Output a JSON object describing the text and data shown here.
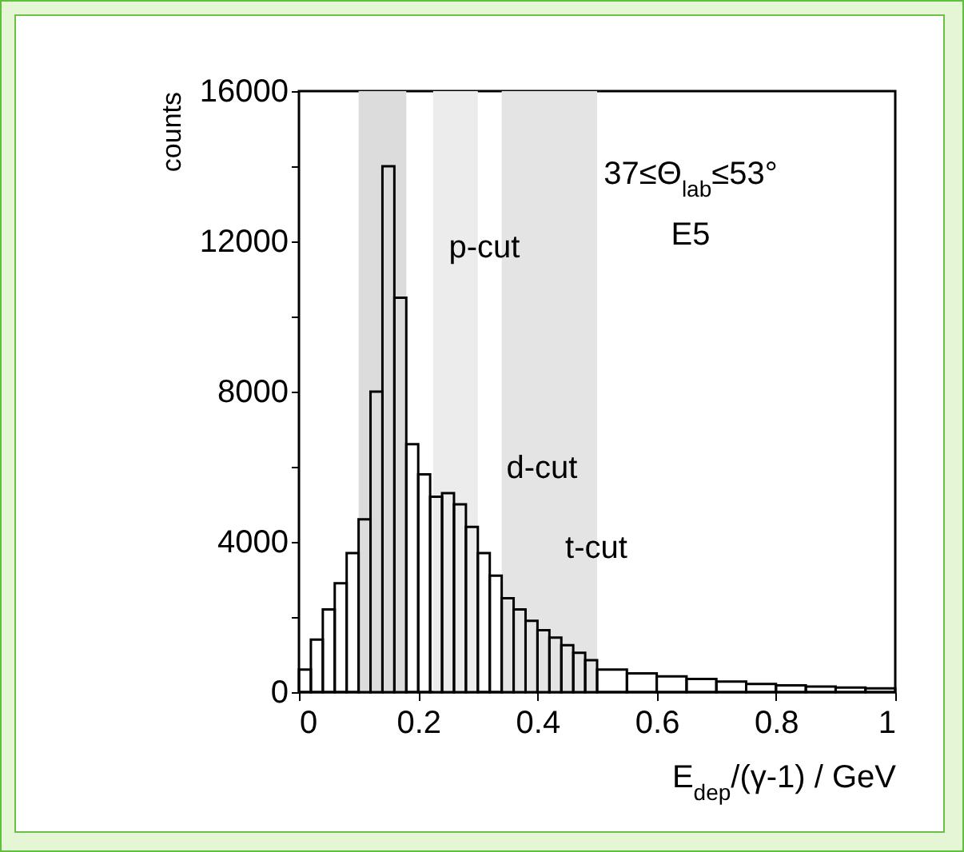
{
  "chart_data": {
    "type": "histogram",
    "xlabel": "E$_{dep}$/(γ-1)  /  GeV",
    "ylabel": "counts",
    "color": "#000000",
    "bins": [
      0,
      0.02,
      0.04,
      0.06,
      0.08,
      0.1,
      0.12,
      0.14,
      0.16,
      0.18,
      0.2,
      0.22,
      0.24,
      0.26,
      0.28,
      0.3,
      0.32,
      0.34,
      0.36,
      0.38,
      0.4,
      0.42,
      0.44,
      0.46,
      0.48,
      0.5,
      0.55,
      0.6,
      0.65,
      0.7,
      0.75,
      0.8,
      0.85,
      0.9,
      0.95,
      1
    ],
    "values": [
      600,
      1400,
      2200,
      2900,
      3700,
      4600,
      8000,
      14000,
      10500,
      6600,
      5800,
      5200,
      5300,
      5000,
      4400,
      3700,
      3100,
      2500,
      2200,
      1900,
      1650,
      1450,
      1250,
      1050,
      850,
      600,
      500,
      420,
      350,
      280,
      220,
      180,
      150,
      120,
      100
    ],
    "xlim": [
      0,
      1
    ],
    "xticks": [
      0,
      0.2,
      0.4,
      0.6,
      0.8,
      1
    ],
    "ylim": [
      0,
      16000
    ],
    "yticks": [
      0,
      {
        "value": 2000,
        "label": null
      },
      4000,
      {
        "value": 6000,
        "label": null
      },
      8000,
      {
        "value": 10000,
        "label": null
      },
      12000,
      {
        "value": 14000,
        "label": null
      },
      16000
    ],
    "bands": [
      {
        "axis": "x",
        "from": 0.1,
        "to": 0.18,
        "color": "#dcdcdc"
      },
      {
        "axis": "x",
        "from": 0.225,
        "to": 0.3,
        "color": "#ececec"
      },
      {
        "axis": "x",
        "from": 0.34,
        "to": 0.5,
        "color": "#e4e4e4"
      }
    ],
    "annotations": [
      "p-cut",
      "d-cut",
      "t-cut",
      "37≤Θ$_{lab}$≤53°",
      "E5"
    ]
  }
}
